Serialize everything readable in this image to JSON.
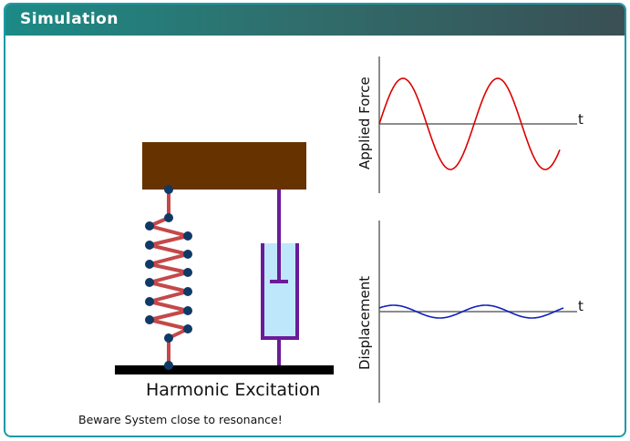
{
  "panel": {
    "title": "Simulation"
  },
  "scene": {
    "caption": "Harmonic Excitation",
    "warning": "Beware System close to resonance!"
  },
  "plots": {
    "force": {
      "ylabel": "Applied Force",
      "xlabel": "t",
      "color": "#dd0000"
    },
    "displacement": {
      "ylabel": "Displacement",
      "xlabel": "t",
      "color": "#1020c0"
    }
  },
  "colors": {
    "header_start": "#1c8a86",
    "mass": "#663300",
    "spring": "#c4484a",
    "spring_nodes": "#0f3a66",
    "damper": "#6a1b9a",
    "damper_fluid": "#bfe7fb",
    "ground": "#000000"
  }
}
